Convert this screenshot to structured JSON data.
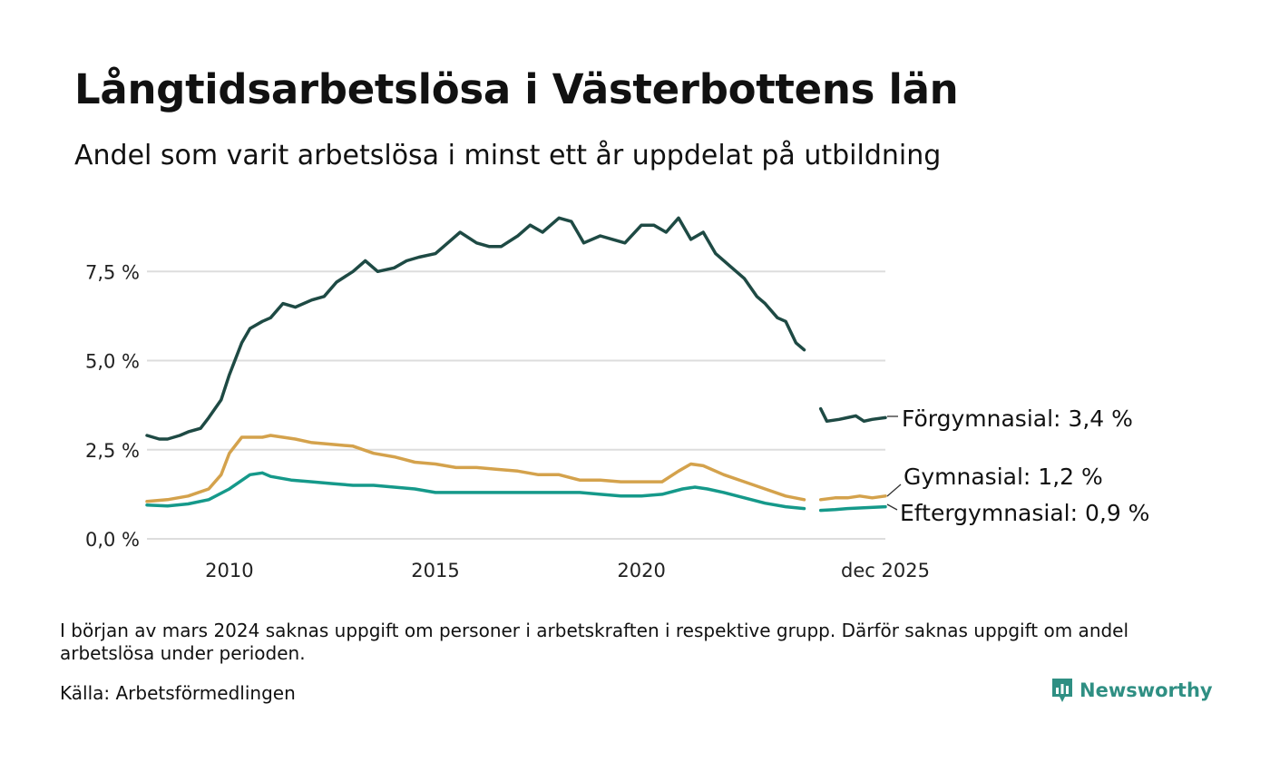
{
  "title": "Långtidsarbetslösa i Västerbottens län",
  "subtitle": "Andel som varit arbetslösa i minst ett år uppdelat på utbildning",
  "note": "I början av mars 2024 saknas uppgift om personer i arbetskraften i respektive grupp. Därför saknas uppgift om andel arbetslösa under perioden.",
  "source": "Källa: Arbetsförmedlingen",
  "brand": {
    "name": "Newsworthy",
    "color": "#2f8f83"
  },
  "chart_data": {
    "type": "line",
    "title": "Långtidsarbetslösa i Västerbottens län",
    "xlabel": "",
    "ylabel": "",
    "xlim": [
      2008.0,
      2025.92
    ],
    "ylim": [
      0,
      9.2
    ],
    "yticks": [
      {
        "value": 0,
        "label": "0,0 %"
      },
      {
        "value": 2.5,
        "label": "2,5 %"
      },
      {
        "value": 5,
        "label": "5,0 %"
      },
      {
        "value": 7.5,
        "label": "7,5 %"
      }
    ],
    "xticks": [
      {
        "value": 2010,
        "label": "2010"
      },
      {
        "value": 2015,
        "label": "2015"
      },
      {
        "value": 2020,
        "label": "2020"
      },
      {
        "value": 2025.92,
        "label": "dec 2025"
      }
    ],
    "grid": true,
    "gap": {
      "from": 2023.95,
      "to": 2024.35
    },
    "series": [
      {
        "name": "Förgymnasial",
        "label": "Förgymnasial: 3,4 %",
        "color": "#1e4a44",
        "x": [
          2008.0,
          2008.3,
          2008.5,
          2008.8,
          2009.0,
          2009.3,
          2009.5,
          2009.8,
          2010.0,
          2010.3,
          2010.5,
          2010.8,
          2011.0,
          2011.3,
          2011.6,
          2012.0,
          2012.3,
          2012.6,
          2013.0,
          2013.3,
          2013.6,
          2014.0,
          2014.3,
          2014.6,
          2015.0,
          2015.3,
          2015.6,
          2016.0,
          2016.3,
          2016.6,
          2017.0,
          2017.3,
          2017.6,
          2018.0,
          2018.3,
          2018.6,
          2019.0,
          2019.3,
          2019.6,
          2020.0,
          2020.3,
          2020.6,
          2020.9,
          2021.2,
          2021.5,
          2021.8,
          2022.2,
          2022.5,
          2022.8,
          2023.0,
          2023.3,
          2023.5,
          2023.75,
          2023.95,
          2024.35,
          2024.5,
          2024.8,
          2025.0,
          2025.2,
          2025.4,
          2025.6,
          2025.92
        ],
        "values": [
          2.9,
          2.8,
          2.8,
          2.9,
          3.0,
          3.1,
          3.4,
          3.9,
          4.6,
          5.5,
          5.9,
          6.1,
          6.2,
          6.6,
          6.5,
          6.7,
          6.8,
          7.2,
          7.5,
          7.8,
          7.5,
          7.6,
          7.8,
          7.9,
          8.0,
          8.3,
          8.6,
          8.3,
          8.2,
          8.2,
          8.5,
          8.8,
          8.6,
          9.0,
          8.9,
          8.3,
          8.5,
          8.4,
          8.3,
          8.8,
          8.8,
          8.6,
          9.0,
          8.4,
          8.6,
          8.0,
          7.6,
          7.3,
          6.8,
          6.6,
          6.2,
          6.1,
          5.5,
          5.3,
          3.65,
          3.3,
          3.35,
          3.4,
          3.45,
          3.3,
          3.35,
          3.4
        ]
      },
      {
        "name": "Gymnasial",
        "label": "Gymnasial: 1,2 %",
        "color": "#d4a24c",
        "x": [
          2008.0,
          2008.5,
          2009.0,
          2009.5,
          2009.8,
          2010.0,
          2010.3,
          2010.5,
          2010.8,
          2011.0,
          2011.3,
          2011.6,
          2012.0,
          2012.5,
          2013.0,
          2013.5,
          2014.0,
          2014.5,
          2015.0,
          2015.5,
          2016.0,
          2016.5,
          2017.0,
          2017.5,
          2018.0,
          2018.5,
          2019.0,
          2019.5,
          2020.0,
          2020.5,
          2020.9,
          2021.2,
          2021.5,
          2022.0,
          2022.5,
          2023.0,
          2023.5,
          2023.95,
          2024.35,
          2024.7,
          2025.0,
          2025.3,
          2025.6,
          2025.92
        ],
        "values": [
          1.05,
          1.1,
          1.2,
          1.4,
          1.8,
          2.4,
          2.85,
          2.85,
          2.85,
          2.9,
          2.85,
          2.8,
          2.7,
          2.65,
          2.6,
          2.4,
          2.3,
          2.15,
          2.1,
          2.0,
          2.0,
          1.95,
          1.9,
          1.8,
          1.8,
          1.65,
          1.65,
          1.6,
          1.6,
          1.6,
          1.9,
          2.1,
          2.05,
          1.8,
          1.6,
          1.4,
          1.2,
          1.1,
          1.1,
          1.15,
          1.15,
          1.2,
          1.15,
          1.2
        ]
      },
      {
        "name": "Eftergymnasial",
        "label": "Eftergymnasial: 0,9 %",
        "color": "#15998a",
        "x": [
          2008.0,
          2008.5,
          2009.0,
          2009.5,
          2010.0,
          2010.5,
          2010.8,
          2011.0,
          2011.5,
          2012.0,
          2012.5,
          2013.0,
          2013.5,
          2014.0,
          2014.5,
          2015.0,
          2015.5,
          2016.0,
          2016.5,
          2017.0,
          2017.5,
          2018.0,
          2018.5,
          2019.0,
          2019.5,
          2020.0,
          2020.5,
          2021.0,
          2021.3,
          2021.6,
          2022.0,
          2022.5,
          2023.0,
          2023.5,
          2023.95,
          2024.35,
          2024.7,
          2025.0,
          2025.4,
          2025.92
        ],
        "values": [
          0.95,
          0.92,
          0.98,
          1.1,
          1.4,
          1.8,
          1.85,
          1.75,
          1.65,
          1.6,
          1.55,
          1.5,
          1.5,
          1.45,
          1.4,
          1.3,
          1.3,
          1.3,
          1.3,
          1.3,
          1.3,
          1.3,
          1.3,
          1.25,
          1.2,
          1.2,
          1.25,
          1.4,
          1.45,
          1.4,
          1.3,
          1.15,
          1.0,
          0.9,
          0.85,
          0.8,
          0.82,
          0.85,
          0.87,
          0.9
        ]
      }
    ]
  }
}
